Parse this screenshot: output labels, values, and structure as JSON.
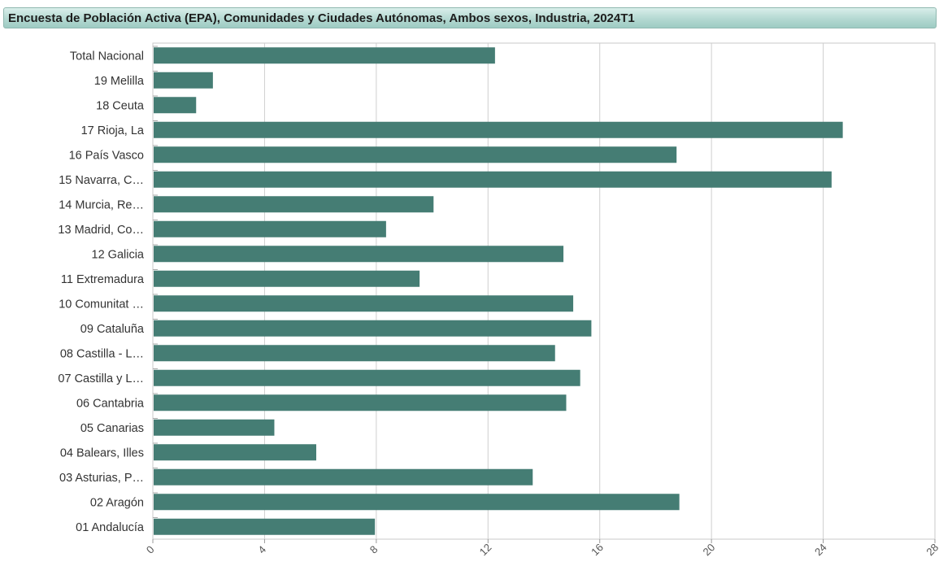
{
  "header": {
    "title": "Encuesta de Población Activa (EPA), Comunidades y Ciudades Autónomas, Ambos sexos, Industria, 2024T1"
  },
  "chart_data": {
    "type": "bar",
    "orientation": "horizontal",
    "title": "Encuesta de Población Activa (EPA), Comunidades y Ciudades Autónomas, Ambos sexos, Industria, 2024T1",
    "xlabel": "",
    "ylabel": "",
    "xlim": [
      0,
      28
    ],
    "xticks": [
      0,
      4,
      8,
      12,
      16,
      20,
      24,
      28
    ],
    "grid": true,
    "bar_color": "#457d74",
    "categories": [
      "Total Nacional",
      "19 Melilla",
      "18 Ceuta",
      "17 Rioja, La",
      "16 País Vasco",
      "15 Navarra, C…",
      "14 Murcia, Re…",
      "13 Madrid, Co…",
      "12 Galicia",
      "11 Extremadura",
      "10 Comunitat …",
      "09 Cataluña",
      "08 Castilla - L…",
      "07 Castilla y L…",
      "06 Cantabria",
      "05 Canarias",
      "04 Balears, Illes",
      "03 Asturias, P…",
      "02 Aragón",
      "01 Andalucía"
    ],
    "values": [
      12.25,
      2.15,
      1.55,
      24.7,
      18.75,
      24.3,
      10.05,
      8.35,
      14.7,
      9.55,
      15.05,
      15.7,
      14.4,
      15.3,
      14.8,
      4.35,
      5.85,
      13.6,
      18.85,
      7.95
    ]
  }
}
